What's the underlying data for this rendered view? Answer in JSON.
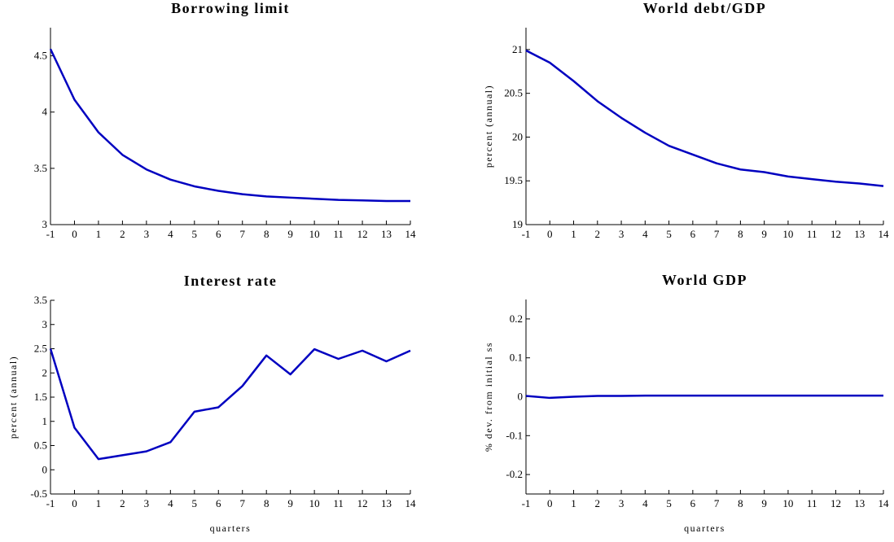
{
  "chart_data": [
    {
      "type": "line",
      "title": "Borrowing limit",
      "x": [
        -1,
        0,
        1,
        2,
        3,
        4,
        5,
        6,
        7,
        8,
        9,
        10,
        11,
        12,
        13,
        14
      ],
      "values": [
        4.56,
        4.11,
        3.82,
        3.62,
        3.49,
        3.4,
        3.34,
        3.3,
        3.27,
        3.25,
        3.24,
        3.23,
        3.22,
        3.215,
        3.21,
        3.21
      ],
      "color": "#0000c0",
      "xlim": [
        -1,
        14
      ],
      "xticks": [
        -1,
        0,
        1,
        2,
        3,
        4,
        5,
        6,
        7,
        8,
        9,
        10,
        11,
        12,
        13,
        14
      ],
      "ylim": [
        3,
        4.75
      ],
      "yticks": [
        3,
        3.5,
        4,
        4.5
      ]
    },
    {
      "type": "line",
      "title": "World debt/GDP",
      "ylabel": "percent (annual)",
      "x": [
        -1,
        0,
        1,
        2,
        3,
        4,
        5,
        6,
        7,
        8,
        9,
        10,
        11,
        12,
        13,
        14
      ],
      "values": [
        20.99,
        20.85,
        20.64,
        20.41,
        20.22,
        20.05,
        19.9,
        19.8,
        19.7,
        19.63,
        19.6,
        19.55,
        19.52,
        19.49,
        19.47,
        19.44
      ],
      "color": "#0000c0",
      "xlim": [
        -1,
        14
      ],
      "xticks": [
        -1,
        0,
        1,
        2,
        3,
        4,
        5,
        6,
        7,
        8,
        9,
        10,
        11,
        12,
        13,
        14
      ],
      "ylim": [
        19,
        21.25
      ],
      "yticks": [
        19,
        19.5,
        20,
        20.5,
        21
      ]
    },
    {
      "type": "line",
      "title": "Interest rate",
      "ylabel": "percent (annual)",
      "xlabel": "quarters",
      "x": [
        -1,
        0,
        1,
        2,
        3,
        4,
        5,
        6,
        7,
        8,
        9,
        10,
        11,
        12,
        13,
        14
      ],
      "values": [
        2.5,
        0.87,
        0.22,
        0.3,
        0.38,
        0.57,
        1.2,
        1.29,
        1.73,
        2.36,
        1.97,
        2.49,
        2.29,
        2.46,
        2.24,
        2.46
      ],
      "color": "#0000c0",
      "xlim": [
        -1,
        14
      ],
      "xticks": [
        -1,
        0,
        1,
        2,
        3,
        4,
        5,
        6,
        7,
        8,
        9,
        10,
        11,
        12,
        13,
        14
      ],
      "ylim": [
        -0.5,
        3.5
      ],
      "yticks": [
        -0.5,
        0,
        0.5,
        1,
        1.5,
        2,
        2.5,
        3,
        3.5
      ]
    },
    {
      "type": "line",
      "title": "World GDP",
      "ylabel": "% dev. from initial ss",
      "xlabel": "quarters",
      "x": [
        -1,
        0,
        1,
        2,
        3,
        4,
        5,
        6,
        7,
        8,
        9,
        10,
        11,
        12,
        13,
        14
      ],
      "values": [
        0.002,
        -0.003,
        0,
        0.002,
        0.002,
        0.003,
        0.003,
        0.003,
        0.003,
        0.003,
        0.003,
        0.003,
        0.003,
        0.003,
        0.003,
        0.003
      ],
      "color": "#0000c0",
      "xlim": [
        -1,
        14
      ],
      "xticks": [
        -1,
        0,
        1,
        2,
        3,
        4,
        5,
        6,
        7,
        8,
        9,
        10,
        11,
        12,
        13,
        14
      ],
      "ylim": [
        -0.25,
        0.25
      ],
      "yticks": [
        -0.2,
        -0.1,
        0,
        0.1,
        0.2
      ]
    }
  ]
}
